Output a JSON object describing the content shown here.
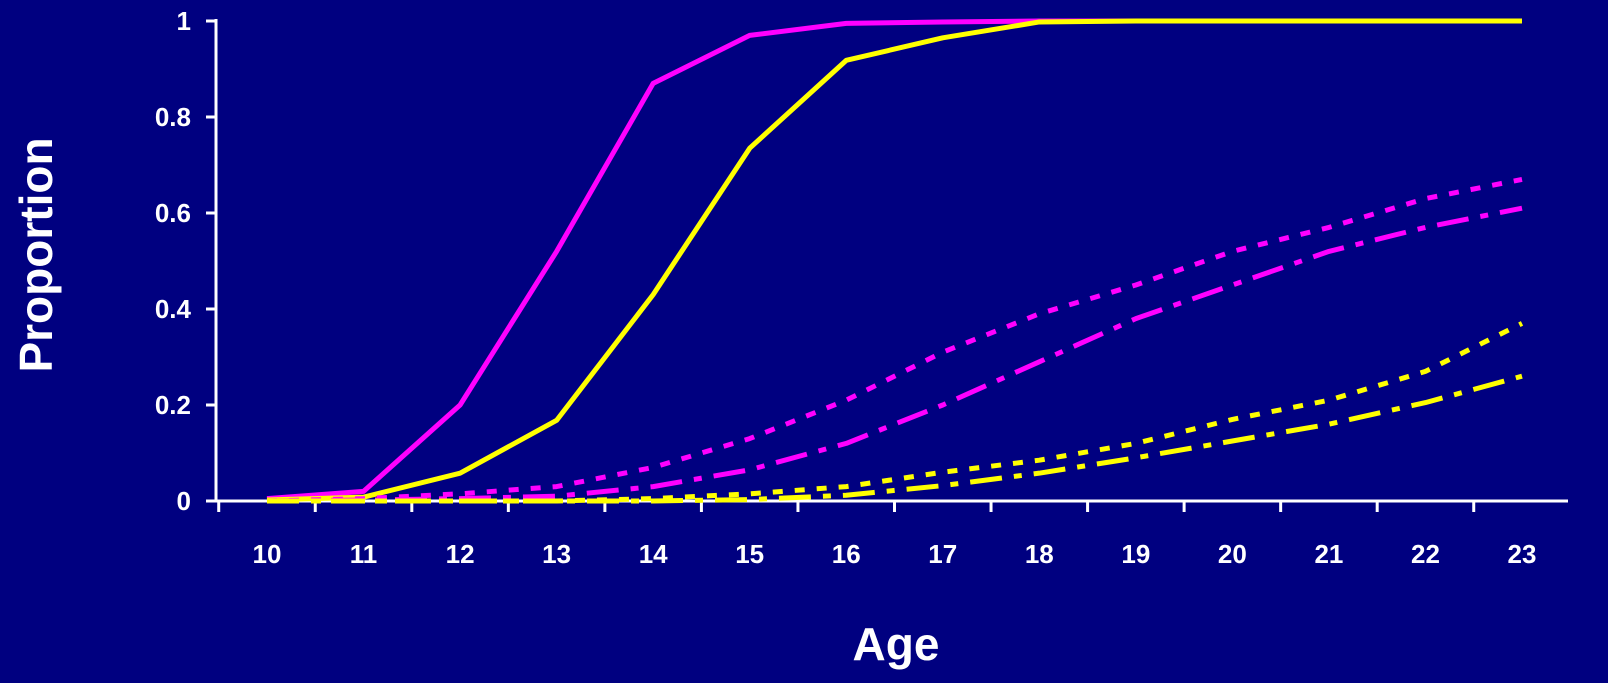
{
  "colors": {
    "background": "#000080",
    "axis": "#ffffff",
    "magenta": "#ff00ff",
    "yellow": "#ffff00"
  },
  "chart_data": {
    "type": "line",
    "title": "",
    "xlabel": "Age",
    "ylabel": "Proportion",
    "x": [
      10,
      11,
      12,
      13,
      14,
      15,
      16,
      17,
      18,
      19,
      20,
      21,
      22,
      23
    ],
    "x_ticks": [
      "10",
      "11",
      "12",
      "13",
      "14",
      "15",
      "16",
      "17",
      "18",
      "19",
      "20",
      "21",
      "22",
      "23"
    ],
    "y_ticks": [
      "0",
      "0.2",
      "0.4",
      "0.6",
      "0.8",
      "1"
    ],
    "xlim": [
      10,
      23
    ],
    "ylim": [
      0,
      1
    ],
    "grid": false,
    "legend": "none",
    "series": [
      {
        "color": "#ff00ff",
        "dash": "solid",
        "values": [
          0.005,
          0.02,
          0.2,
          0.52,
          0.87,
          0.97,
          0.995,
          0.998,
          1.0,
          1.0,
          1.0,
          1.0,
          1.0,
          1.0
        ]
      },
      {
        "color": "#ffff00",
        "dash": "solid",
        "values": [
          0.002,
          0.008,
          0.058,
          0.168,
          0.43,
          0.735,
          0.918,
          0.965,
          0.998,
          1.0,
          1.0,
          1.0,
          1.0,
          1.0
        ]
      },
      {
        "color": "#ff00ff",
        "dash": "dotted",
        "values": [
          0.0,
          0.005,
          0.015,
          0.03,
          0.07,
          0.13,
          0.21,
          0.31,
          0.39,
          0.45,
          0.52,
          0.57,
          0.63,
          0.67
        ]
      },
      {
        "color": "#ff00ff",
        "dash": "dash-dot",
        "values": [
          0.0,
          0.002,
          0.005,
          0.01,
          0.03,
          0.065,
          0.12,
          0.2,
          0.29,
          0.38,
          0.45,
          0.52,
          0.57,
          0.61
        ]
      },
      {
        "color": "#ffff00",
        "dash": "dotted",
        "values": [
          0.0,
          0.0,
          0.0,
          0.0,
          0.005,
          0.015,
          0.03,
          0.06,
          0.085,
          0.12,
          0.17,
          0.21,
          0.27,
          0.37
        ]
      },
      {
        "color": "#ffff00",
        "dash": "dash-dot",
        "values": [
          0.0,
          0.0,
          0.0,
          0.0,
          0.0,
          0.003,
          0.012,
          0.032,
          0.058,
          0.09,
          0.125,
          0.16,
          0.205,
          0.26
        ]
      }
    ]
  }
}
